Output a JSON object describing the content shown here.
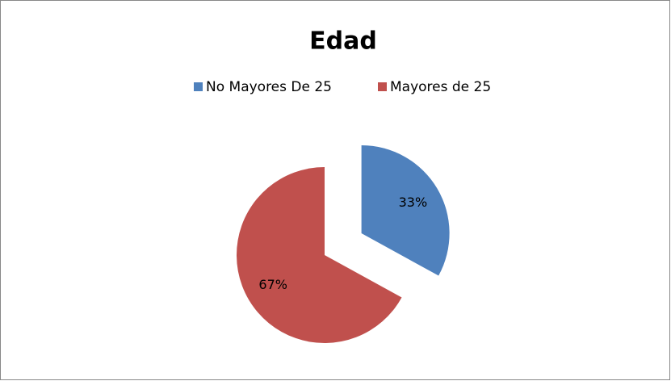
{
  "chart_data": {
    "type": "pie",
    "title": "Edad",
    "categories": [
      "No Mayores De 25",
      "Mayores de 25"
    ],
    "values": [
      33,
      67
    ],
    "value_labels": [
      "33%",
      "67%"
    ],
    "colors": [
      "#4f81bd",
      "#c0504d"
    ],
    "explode": [
      true,
      false
    ],
    "legend": "top"
  }
}
